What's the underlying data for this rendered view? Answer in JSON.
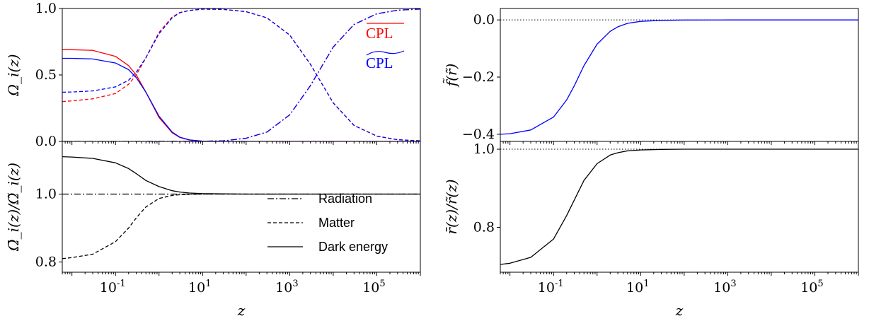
{
  "xaxis": {
    "label": "z",
    "ticks": [
      {
        "base": "10",
        "exp": "-1",
        "value": 0.1
      },
      {
        "base": "10",
        "exp": "1",
        "value": 10
      },
      {
        "base": "10",
        "exp": "3",
        "value": 1000
      },
      {
        "base": "10",
        "exp": "5",
        "value": 100000
      }
    ]
  },
  "colors": {
    "bar": "#ff0000",
    "tilde": "#0000ff",
    "ratio": "#000000"
  },
  "chart_data": [
    {
      "type": "line",
      "panel": "top-left",
      "ylabel": "Ω_i(z)",
      "xscale": "log",
      "xlim": [
        0.006,
        1000000
      ],
      "ylim": [
        0,
        1
      ],
      "yticks": [
        {
          "value": 0.0,
          "label": "0.0"
        },
        {
          "value": 0.5,
          "label": "0.5"
        },
        {
          "value": 1.0,
          "label": "1.0"
        }
      ],
      "legend": {
        "placement": "top-right",
        "entries": [
          {
            "label": "CPL",
            "accent": "bar",
            "color": "#ff0000"
          },
          {
            "label": "CPL",
            "accent": "tilde",
            "color": "#0000ff"
          }
        ]
      },
      "x": [
        0.006,
        0.01,
        0.03,
        0.1,
        0.2,
        0.3,
        0.5,
        1,
        2,
        3,
        5,
        10,
        30,
        100,
        300,
        1000,
        3000,
        10000,
        30000,
        100000,
        300000,
        1000000
      ],
      "series": [
        {
          "name": "Dark energy",
          "model": "bar",
          "style": "solid",
          "color": "#ff0000",
          "values": [
            0.69,
            0.69,
            0.685,
            0.64,
            0.57,
            0.5,
            0.37,
            0.18,
            0.065,
            0.03,
            0.01,
            0.002,
            0.0003,
            0.0,
            0.0,
            0.0,
            0.0,
            0.0,
            0.0,
            0.0,
            0.0,
            0.0
          ]
        },
        {
          "name": "Matter",
          "model": "bar",
          "style": "dashed",
          "color": "#ff0000",
          "values": [
            0.3,
            0.305,
            0.32,
            0.36,
            0.43,
            0.5,
            0.63,
            0.82,
            0.935,
            0.97,
            0.985,
            0.995,
            0.993,
            0.976,
            0.93,
            0.8,
            0.58,
            0.29,
            0.12,
            0.04,
            0.013,
            0.004
          ]
        },
        {
          "name": "Radiation",
          "model": "bar",
          "style": "dash-dot",
          "color": "#ff0000",
          "values": [
            0.0001,
            0.0001,
            0.0001,
            0.0001,
            0.0001,
            0.0001,
            0.0002,
            0.0003,
            0.0004,
            0.0005,
            0.0008,
            0.0015,
            0.0045,
            0.024,
            0.07,
            0.2,
            0.42,
            0.71,
            0.88,
            0.96,
            0.987,
            0.996
          ]
        },
        {
          "name": "Dark energy",
          "model": "tilde",
          "style": "solid",
          "color": "#0000ff",
          "values": [
            0.625,
            0.625,
            0.62,
            0.59,
            0.54,
            0.48,
            0.37,
            0.19,
            0.07,
            0.032,
            0.011,
            0.002,
            0.0003,
            0.0,
            0.0,
            0.0,
            0.0,
            0.0,
            0.0,
            0.0,
            0.0,
            0.0
          ]
        },
        {
          "name": "Matter",
          "model": "tilde",
          "style": "dashed",
          "color": "#0000ff",
          "values": [
            0.37,
            0.372,
            0.38,
            0.41,
            0.46,
            0.52,
            0.63,
            0.81,
            0.93,
            0.968,
            0.985,
            0.995,
            0.993,
            0.976,
            0.93,
            0.8,
            0.58,
            0.29,
            0.12,
            0.04,
            0.013,
            0.004
          ]
        },
        {
          "name": "Radiation",
          "model": "tilde",
          "style": "dash-dot",
          "color": "#0000ff",
          "values": [
            0.0001,
            0.0001,
            0.0001,
            0.0001,
            0.0001,
            0.0001,
            0.0002,
            0.0003,
            0.0004,
            0.0005,
            0.0008,
            0.0015,
            0.0045,
            0.024,
            0.07,
            0.2,
            0.42,
            0.71,
            0.88,
            0.96,
            0.987,
            0.996
          ]
        }
      ]
    },
    {
      "type": "line",
      "panel": "bottom-left",
      "ylabel": "Ω̄_i(z)/Ω̃_i(z)",
      "xscale": "log",
      "xlim": [
        0.006,
        1000000
      ],
      "ylim": [
        0.77,
        1.155
      ],
      "yticks": [
        {
          "value": 0.8,
          "label": "0.8"
        },
        {
          "value": 1.0,
          "label": "1.0"
        }
      ],
      "legend": {
        "placement": "lower-right",
        "entries": [
          {
            "label": "Radiation",
            "style": "dash-dot"
          },
          {
            "label": "Matter",
            "style": "dashed"
          },
          {
            "label": "Dark energy",
            "style": "solid"
          }
        ]
      },
      "x": [
        0.006,
        0.01,
        0.03,
        0.1,
        0.2,
        0.3,
        0.5,
        1,
        2,
        3,
        5,
        10,
        30,
        100,
        300,
        1000,
        1000000
      ],
      "series": [
        {
          "name": "Radiation",
          "style": "dash-dot",
          "color": "#000000",
          "values": [
            1.0,
            1.0,
            1.0,
            1.0,
            1.0,
            1.0,
            1.0,
            1.0,
            1.0,
            1.0,
            1.0,
            1.0,
            1.0,
            1.0,
            1.0,
            1.0,
            1.0
          ]
        },
        {
          "name": "Matter",
          "style": "dashed",
          "color": "#000000",
          "values": [
            0.81,
            0.813,
            0.823,
            0.86,
            0.9,
            0.93,
            0.962,
            0.987,
            0.996,
            0.998,
            0.999,
            1.0,
            1.0,
            1.0,
            1.0,
            1.0,
            1.0
          ]
        },
        {
          "name": "Dark energy",
          "style": "solid",
          "color": "#000000",
          "values": [
            1.11,
            1.109,
            1.105,
            1.092,
            1.075,
            1.06,
            1.04,
            1.022,
            1.01,
            1.006,
            1.003,
            1.0015,
            1.0005,
            1.0,
            1.0,
            1.0,
            1.0
          ]
        }
      ]
    },
    {
      "type": "line",
      "panel": "top-right",
      "ylabel": "f̃(r̃)",
      "xscale": "log",
      "xlim": [
        0.006,
        1000000
      ],
      "ylim": [
        -0.425,
        0.04
      ],
      "yticks": [
        {
          "value": -0.4,
          "label": "−0.4"
        },
        {
          "value": -0.2,
          "label": "−0.2"
        },
        {
          "value": 0.0,
          "label": "0.0"
        }
      ],
      "reference_line": 0.0,
      "x": [
        0.006,
        0.01,
        0.03,
        0.1,
        0.2,
        0.3,
        0.5,
        1,
        2,
        3,
        5,
        10,
        30,
        100,
        1000,
        1000000
      ],
      "series": [
        {
          "name": "",
          "style": "solid",
          "color": "#0000ff",
          "values": [
            -0.4,
            -0.398,
            -0.385,
            -0.34,
            -0.28,
            -0.23,
            -0.16,
            -0.085,
            -0.04,
            -0.024,
            -0.012,
            -0.005,
            -0.0015,
            -0.0004,
            0.0,
            0.0
          ]
        }
      ]
    },
    {
      "type": "line",
      "panel": "bottom-right",
      "ylabel": "r̄(z)/r̃(z)",
      "xscale": "log",
      "xlim": [
        0.006,
        1000000
      ],
      "ylim": [
        0.685,
        1.02
      ],
      "yticks": [
        {
          "value": 0.8,
          "label": "0.8"
        },
        {
          "value": 1.0,
          "label": "1.0"
        }
      ],
      "reference_line": 1.0,
      "x": [
        0.006,
        0.01,
        0.03,
        0.1,
        0.2,
        0.3,
        0.5,
        1,
        2,
        3,
        5,
        10,
        30,
        100,
        1000,
        1000000
      ],
      "series": [
        {
          "name": "",
          "style": "solid",
          "color": "#000000",
          "values": [
            0.705,
            0.708,
            0.723,
            0.77,
            0.83,
            0.87,
            0.92,
            0.963,
            0.985,
            0.991,
            0.996,
            0.998,
            0.9995,
            1.0,
            1.0,
            1.0
          ]
        }
      ]
    }
  ]
}
